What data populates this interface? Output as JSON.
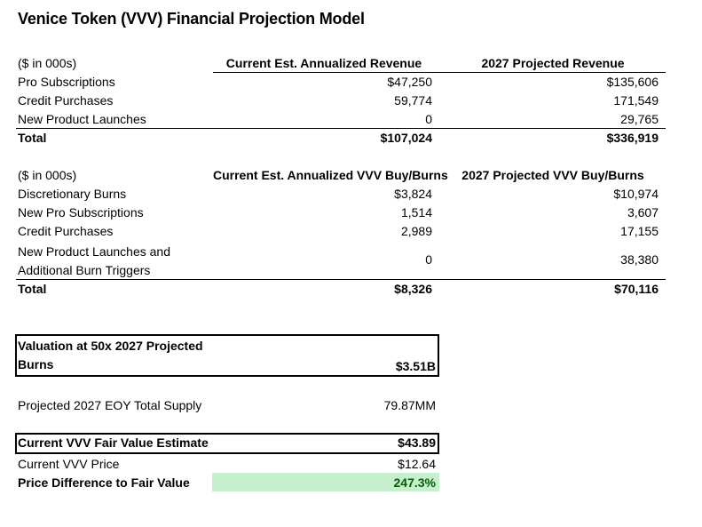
{
  "title": "Venice Token (VVV) Financial Projection Model",
  "revenue": {
    "unit_label": "($ in 000s)",
    "col1_header": "Current Est. Annualized Revenue",
    "col2_header": "2027 Projected Revenue",
    "rows": [
      {
        "label": "Pro Subscriptions",
        "current": "$47,250",
        "projected": "$135,606"
      },
      {
        "label": "Credit Purchases",
        "current": "59,774",
        "projected": "171,549"
      },
      {
        "label": "New Product Launches",
        "current": "0",
        "projected": "29,765"
      }
    ],
    "total": {
      "label": "Total",
      "current": "$107,024",
      "projected": "$336,919"
    }
  },
  "burns": {
    "unit_label": "($ in 000s)",
    "col1_header": "Current Est. Annualized VVV Buy/Burns",
    "col2_header": "2027 Projected VVV Buy/Burns",
    "rows": [
      {
        "label": "Discretionary Burns",
        "current": "$3,824",
        "projected": "$10,974"
      },
      {
        "label": "New Pro Subscriptions",
        "current": "1,514",
        "projected": "3,607"
      },
      {
        "label": "Credit Purchases",
        "current": "2,989",
        "projected": "17,155"
      }
    ],
    "multi_row": {
      "label_line1": "New Product Launches and",
      "label_line2": "Additional Burn Triggers",
      "current": "0",
      "projected": "38,380"
    },
    "total": {
      "label": "Total",
      "current": "$8,326",
      "projected": "$70,116"
    }
  },
  "valuation": {
    "label_line1": "Valuation at 50x 2027 Projected",
    "label_line2": "Burns",
    "value": "$3.51B"
  },
  "supply": {
    "label": "Projected 2027 EOY Total Supply",
    "value": "79.87MM"
  },
  "fair_value": {
    "label": "Current VVV Fair Value Estimate",
    "value": "$43.89"
  },
  "price": {
    "label": "Current VVV Price",
    "value": "$12.64"
  },
  "difference": {
    "label": "Price Difference to Fair Value",
    "value": "247.3%"
  },
  "colors": {
    "highlight_fill": "#c6efce",
    "highlight_text": "#006100"
  }
}
